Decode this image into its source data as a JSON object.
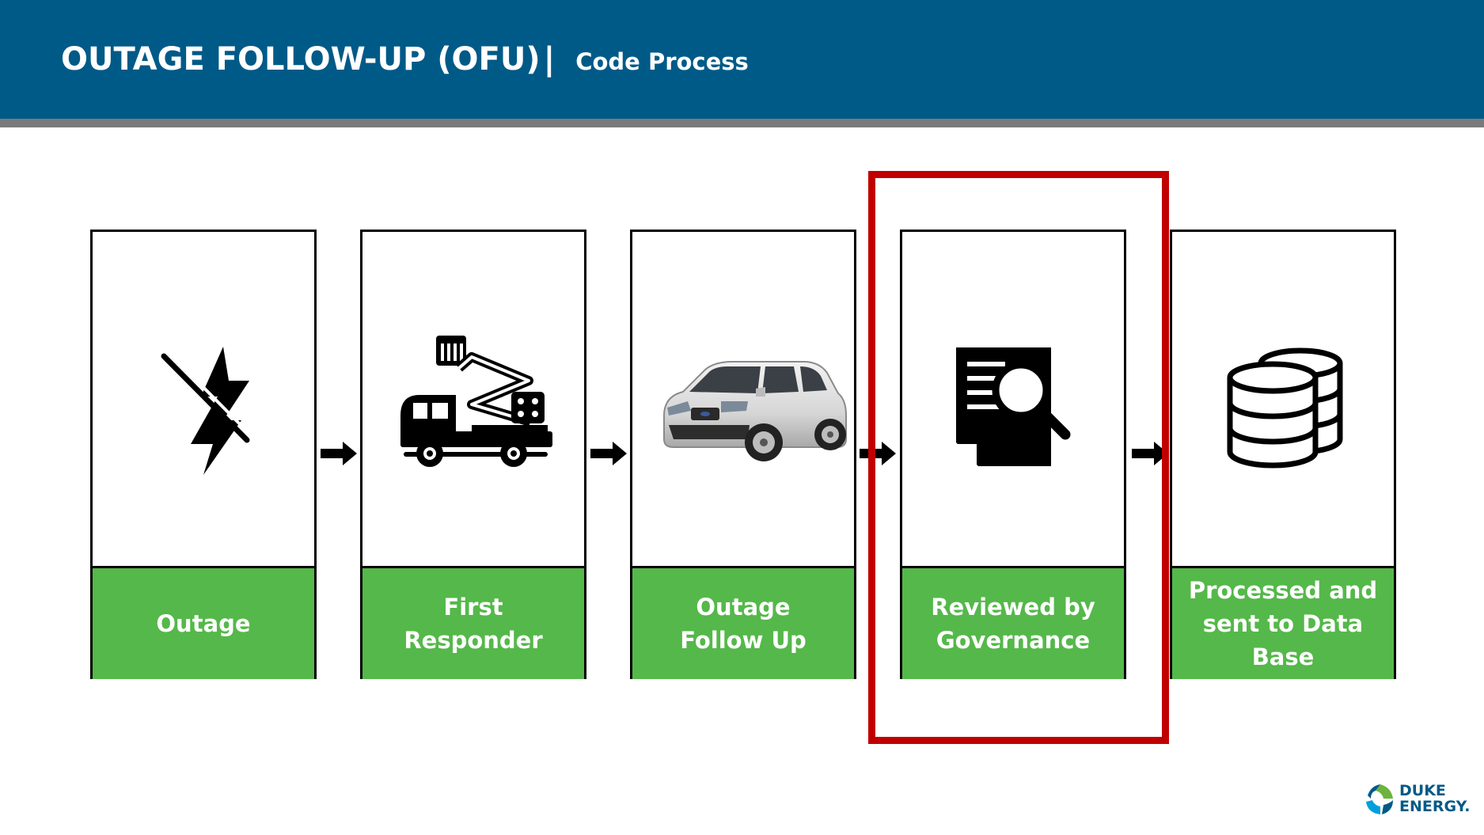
{
  "header": {
    "title": "OUTAGE FOLLOW-UP (OFU)",
    "separator": "|",
    "subtitle": "Code Process"
  },
  "steps": [
    {
      "label": "Outage",
      "icon": "power-off-lightning-icon"
    },
    {
      "label": "First\nResponder",
      "icon": "bucket-truck-icon"
    },
    {
      "label": "Outage\nFollow Up",
      "icon": "suv-car-icon"
    },
    {
      "label": "Reviewed by\nGovernance",
      "icon": "document-search-icon"
    },
    {
      "label": "Processed and\nsent to Data Base",
      "icon": "database-icon"
    }
  ],
  "highlighted_step": "Reviewed by\nGovernance",
  "logo": {
    "text": "DUKE\nENERGY."
  },
  "colors": {
    "header": "#005a87",
    "stripe": "#7a7a7a",
    "step_label": "#55b84a",
    "highlight": "#c00000"
  }
}
